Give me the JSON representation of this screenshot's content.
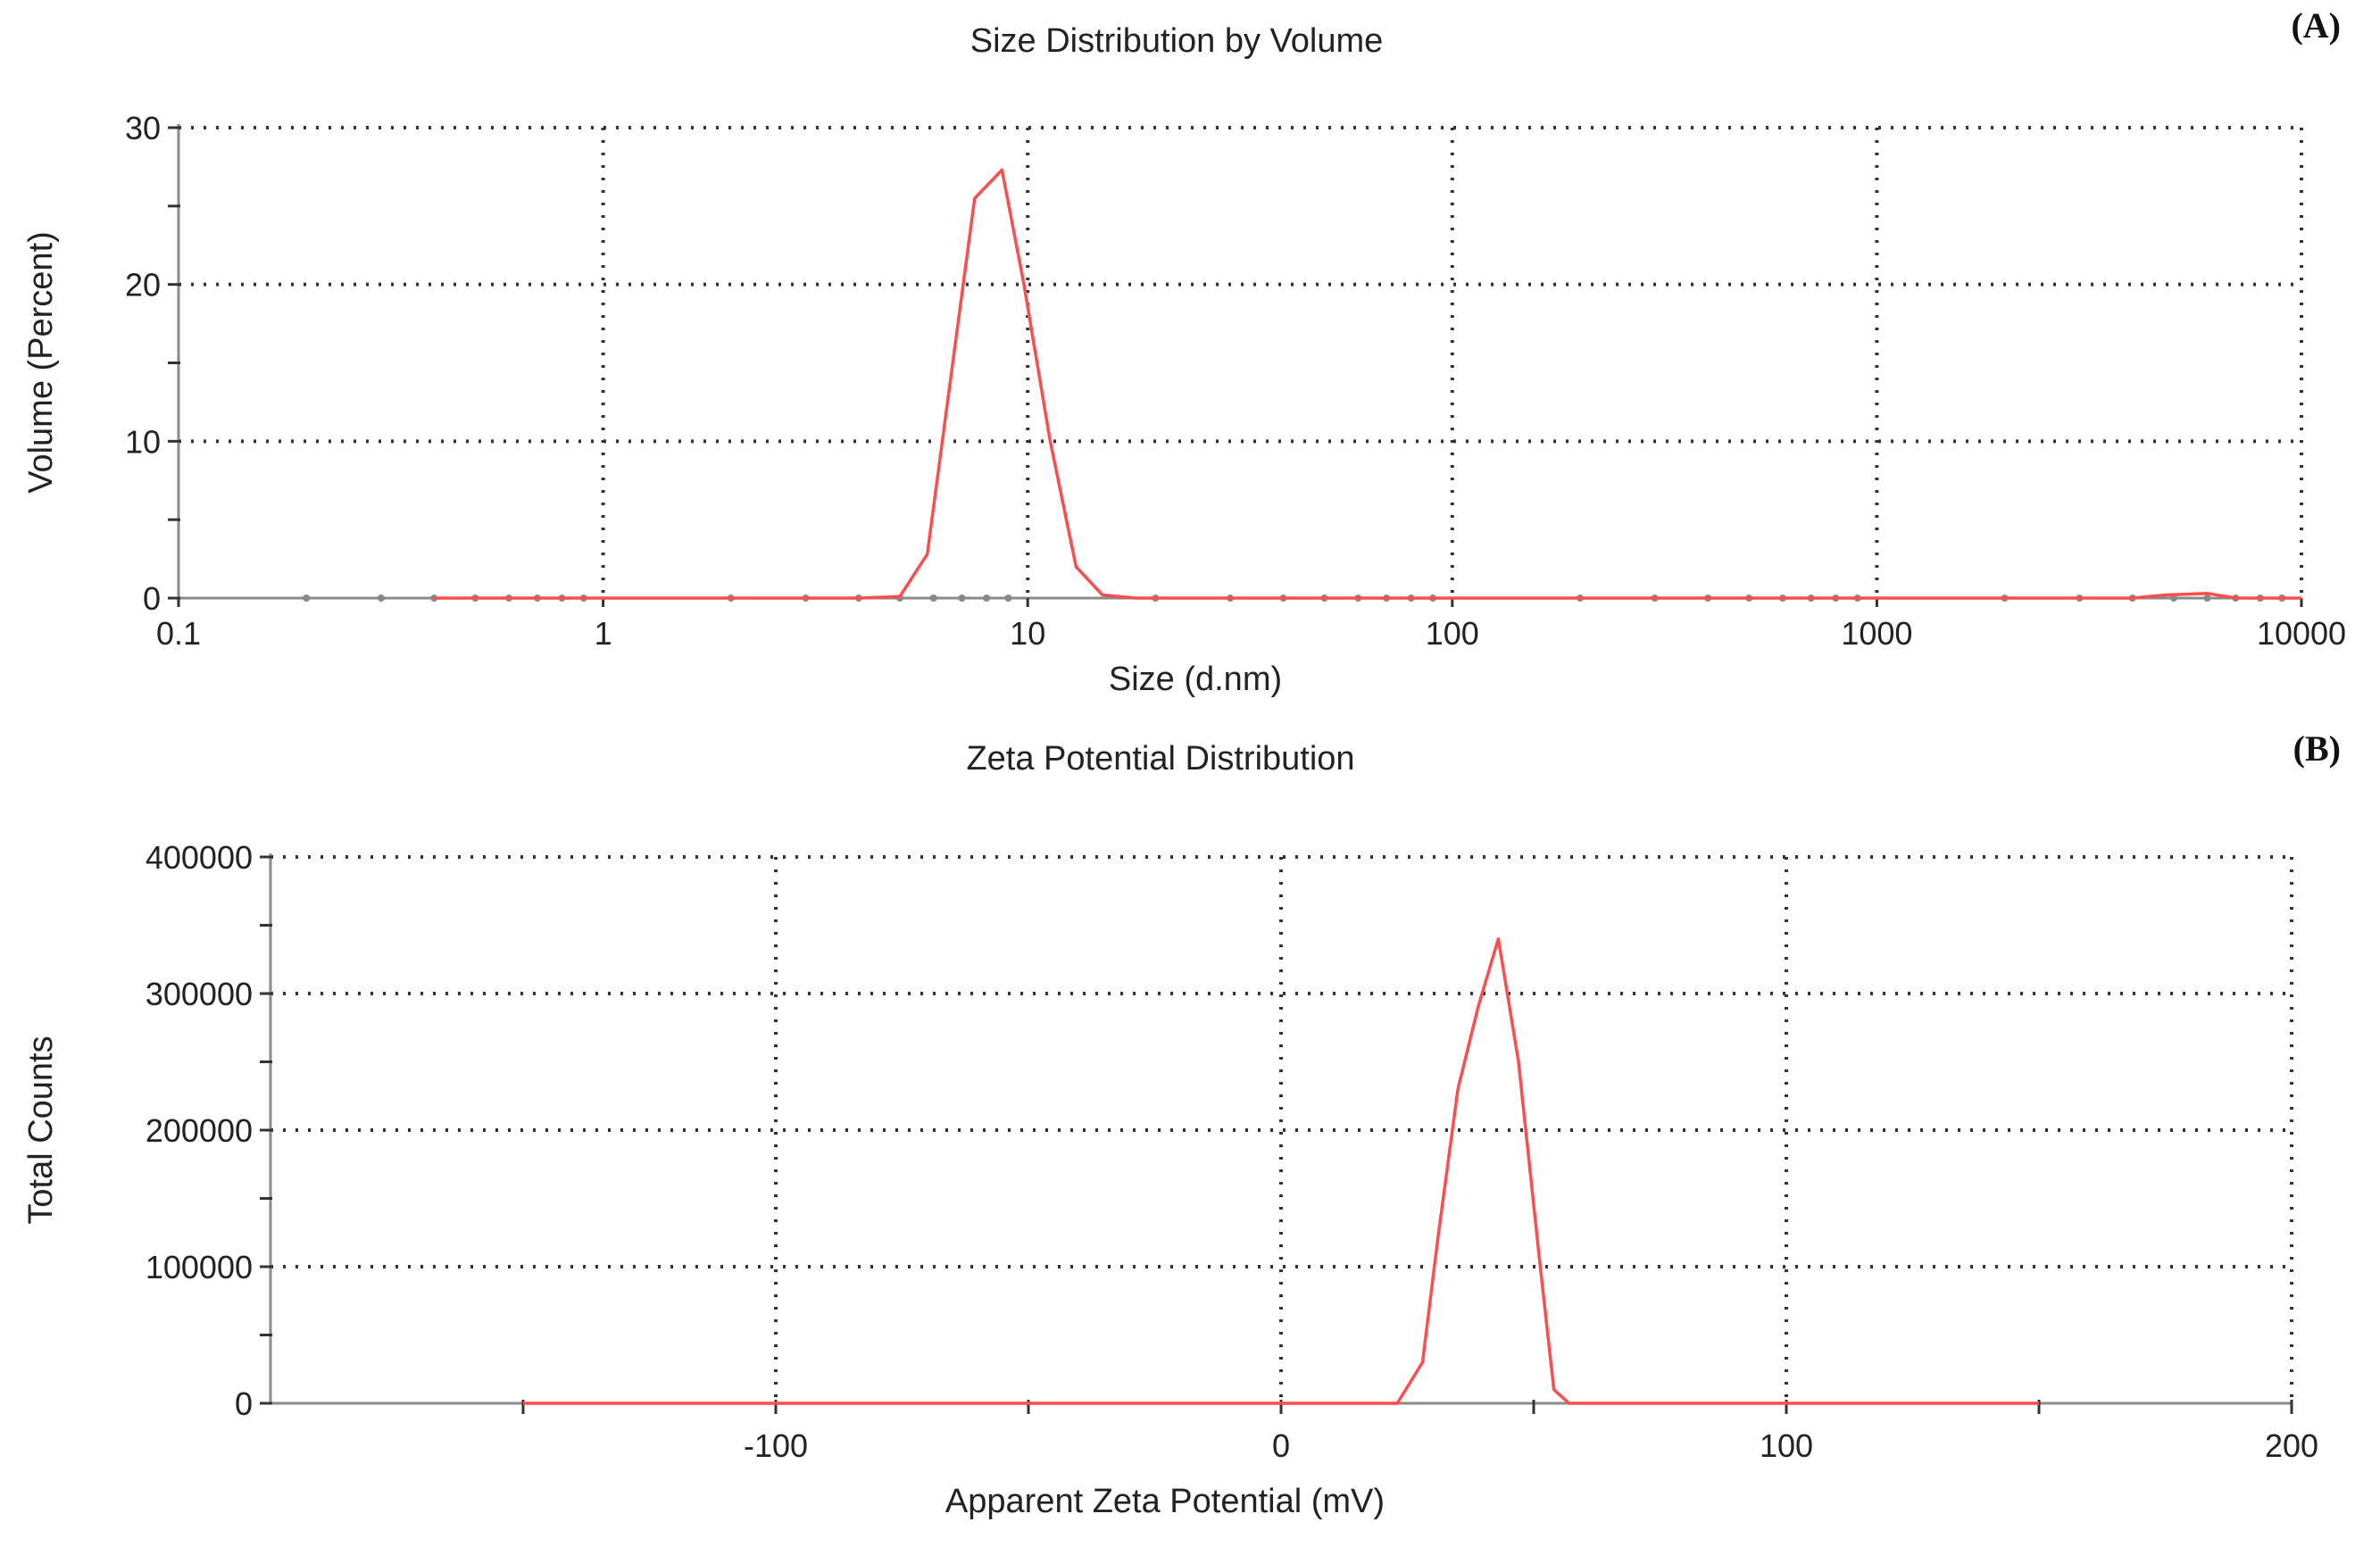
{
  "chart_data": [
    {
      "id": "A",
      "panel_label": "(A)",
      "type": "line",
      "title": "Size Distribution by Volume",
      "xlabel": "Size (d.nm)",
      "ylabel": "Volume (Percent)",
      "xscale": "log",
      "xlim": [
        0.1,
        10000
      ],
      "ylim": [
        0,
        30
      ],
      "xticks": [
        0.1,
        1,
        10,
        100,
        1000,
        10000
      ],
      "xtick_labels": [
        "0.1",
        "1",
        "10",
        "100",
        "1000",
        "10000"
      ],
      "yticks": [
        0,
        10,
        20,
        30
      ],
      "ytick_labels": [
        "0",
        "10",
        "20",
        "30"
      ],
      "grid": true,
      "series": [
        {
          "color": "#ff4d4d",
          "x": [
            0.4,
            1,
            2,
            3,
            4,
            5,
            5.8,
            7.5,
            8.7,
            9.8,
            11.3,
            13,
            15,
            18,
            50,
            200,
            1000,
            4000,
            4800,
            6000,
            7000,
            10000
          ],
          "y": [
            0,
            0,
            0,
            0,
            0,
            0.1,
            2.8,
            25.5,
            27.3,
            20,
            10,
            2,
            0.2,
            0,
            0,
            0,
            0,
            0,
            0.2,
            0.3,
            0,
            0
          ]
        }
      ]
    },
    {
      "id": "B",
      "panel_label": "(B)",
      "type": "line",
      "title": "Zeta Potential Distribution",
      "xlabel": "Apparent Zeta Potential (mV)",
      "ylabel": "Total Counts",
      "xscale": "linear",
      "xlim": [
        -200,
        200
      ],
      "ylim": [
        0,
        400000
      ],
      "xticks": [
        -100,
        0,
        100,
        200
      ],
      "xtick_labels": [
        "-100",
        "0",
        "100",
        "200"
      ],
      "yticks": [
        0,
        100000,
        200000,
        300000,
        400000
      ],
      "ytick_labels": [
        "0",
        "100000",
        "200000",
        "300000",
        "400000"
      ],
      "grid": true,
      "series": [
        {
          "color": "#ff4d4d",
          "x": [
            -150,
            -100,
            0,
            20,
            23,
            28,
            31,
            35,
            39,
            43,
            47,
            51,
            54,
            57,
            150
          ],
          "y": [
            0,
            0,
            0,
            0,
            0,
            30000,
            120000,
            230000,
            290000,
            340000,
            250000,
            110000,
            10000,
            0,
            0
          ]
        }
      ]
    }
  ]
}
